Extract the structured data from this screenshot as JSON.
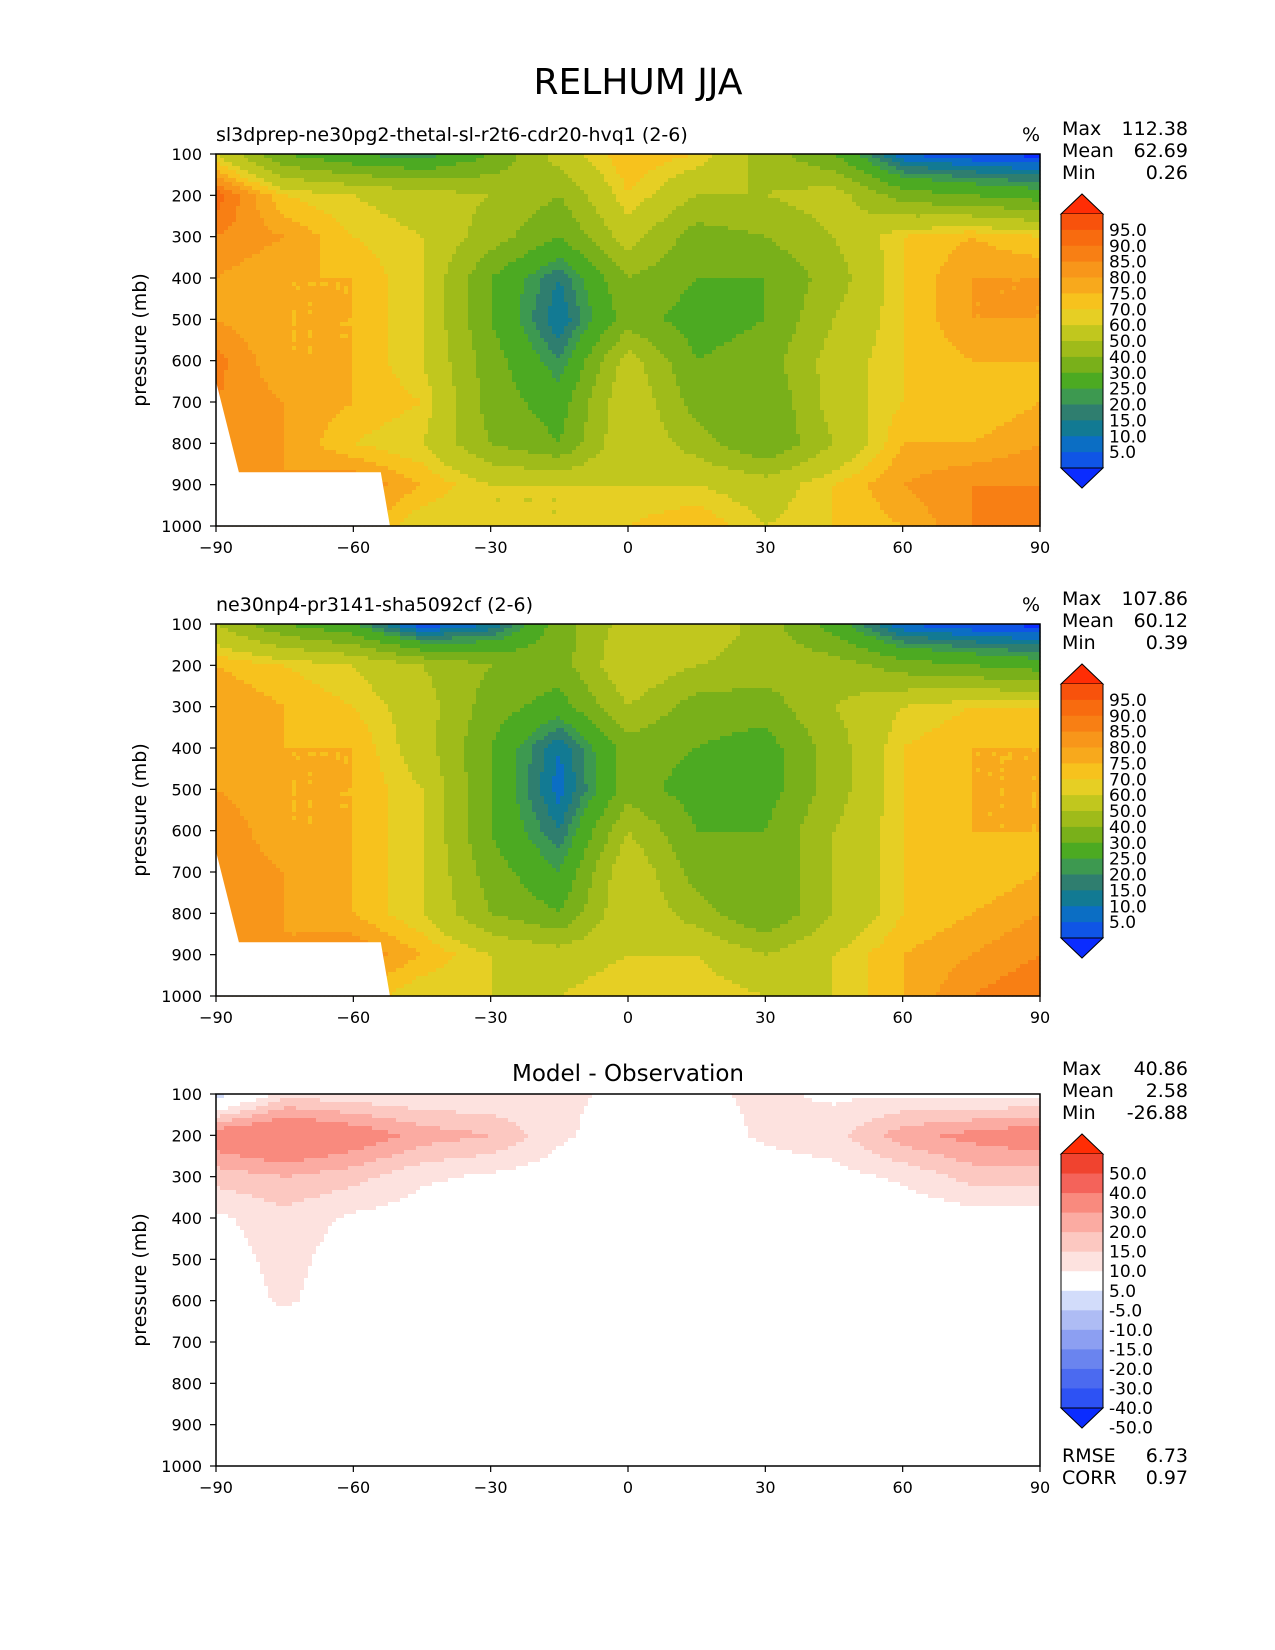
{
  "figure": {
    "title": "RELHUM JJA",
    "colors": {
      "field": [
        "#0b2cff",
        "#0f55e6",
        "#0b6ec4",
        "#127a93",
        "#2f7e6f",
        "#3d9950",
        "#4caa22",
        "#79b01a",
        "#9fbb1a",
        "#c1c71e",
        "#e6cf24",
        "#f7c21d",
        "#f8a91c",
        "#f8961a",
        "#f87f14",
        "#f86b0f",
        "#f8520c",
        "#ff2d05"
      ],
      "diff": [
        "#0b2cff",
        "#2d52f4",
        "#4b6af0",
        "#6a84ef",
        "#8c9ff2",
        "#aebcf4",
        "#d2dcfa",
        "#ffffff",
        "#fde2df",
        "#fcc8c1",
        "#fbaba2",
        "#f98a7e",
        "#f4635a",
        "#f0432f",
        "#ff2d05"
      ]
    }
  },
  "chart_data": [
    {
      "type": "heatmap",
      "title": "sl3dprep-ne30pg2-thetal-sl-r2t6-cdr20-hvq1 (2-6)",
      "units": "%",
      "ylabel": "pressure (mb)",
      "x_ticks": [
        "−90",
        "−60",
        "−30",
        "0",
        "30",
        "60",
        "90"
      ],
      "y_ticks": [
        "100",
        "200",
        "300",
        "400",
        "500",
        "600",
        "700",
        "800",
        "900",
        "1000"
      ],
      "xlim": [
        -90,
        90
      ],
      "ylim": [
        1000,
        100
      ],
      "stats": {
        "max_label": "Max",
        "max": "112.38",
        "mean_label": "Mean",
        "mean": "62.69",
        "min_label": "Min",
        "min": "0.26"
      },
      "colorbar": {
        "levels": [
          "95.0",
          "90.0",
          "85.0",
          "80.0",
          "75.0",
          "70.0",
          "60.0",
          "50.0",
          "40.0",
          "30.0",
          "25.0",
          "20.0",
          "15.0",
          "10.0",
          "5.0"
        ]
      },
      "x": [
        -90,
        -75,
        -60,
        -45,
        -30,
        -15,
        0,
        15,
        30,
        45,
        60,
        75,
        90
      ],
      "y": [
        100,
        200,
        300,
        400,
        500,
        600,
        700,
        800,
        900,
        1000
      ],
      "z": [
        [
          70,
          40,
          30,
          25,
          40,
          65,
          80,
          75,
          55,
          40,
          10,
          5,
          3
        ],
        [
          98,
          75,
          70,
          65,
          60,
          50,
          75,
          60,
          60,
          65,
          45,
          40,
          35
        ],
        [
          90,
          85,
          75,
          70,
          55,
          40,
          65,
          45,
          50,
          60,
          75,
          80,
          75
        ],
        [
          85,
          80,
          80,
          70,
          40,
          20,
          50,
          40,
          40,
          55,
          75,
          85,
          85
        ],
        [
          85,
          80,
          80,
          70,
          40,
          15,
          45,
          35,
          40,
          60,
          75,
          85,
          85
        ],
        [
          92,
          80,
          80,
          70,
          45,
          25,
          65,
          40,
          45,
          65,
          75,
          80,
          80
        ],
        [
          90,
          85,
          80,
          75,
          45,
          35,
          70,
          45,
          40,
          65,
          75,
          75,
          80
        ],
        [
          90,
          85,
          75,
          70,
          50,
          40,
          70,
          55,
          40,
          60,
          80,
          80,
          85
        ],
        [
          90,
          85,
          90,
          80,
          70,
          70,
          70,
          70,
          65,
          75,
          85,
          90,
          90
        ],
        [
          90,
          90,
          85,
          70,
          70,
          70,
          75,
          80,
          70,
          75,
          80,
          90,
          95
        ]
      ],
      "mask": [
        [
          -90,
          650
        ],
        [
          -85,
          870
        ],
        [
          -54,
          870
        ],
        [
          -52,
          1000
        ]
      ]
    },
    {
      "type": "heatmap",
      "title": "ne30np4-pr3141-sha5092cf (2-6)",
      "units": "%",
      "ylabel": "pressure (mb)",
      "x_ticks": [
        "−90",
        "−60",
        "−30",
        "0",
        "30",
        "60",
        "90"
      ],
      "y_ticks": [
        "100",
        "200",
        "300",
        "400",
        "500",
        "600",
        "700",
        "800",
        "900",
        "1000"
      ],
      "xlim": [
        -90,
        90
      ],
      "ylim": [
        1000,
        100
      ],
      "stats": {
        "max_label": "Max",
        "max": "107.86",
        "mean_label": "Mean",
        "mean": "60.12",
        "min_label": "Min",
        "min": "0.39"
      },
      "colorbar": {
        "levels": [
          "95.0",
          "90.0",
          "85.0",
          "80.0",
          "75.0",
          "70.0",
          "60.0",
          "50.0",
          "40.0",
          "30.0",
          "25.0",
          "20.0",
          "15.0",
          "10.0",
          "5.0"
        ]
      },
      "x": [
        -90,
        -75,
        -60,
        -45,
        -30,
        -15,
        0,
        15,
        30,
        45,
        60,
        75,
        90
      ],
      "y": [
        100,
        200,
        300,
        400,
        500,
        600,
        700,
        800,
        900,
        1000
      ],
      "z": [
        [
          60,
          40,
          30,
          5,
          15,
          45,
          65,
          70,
          55,
          35,
          10,
          5,
          3
        ],
        [
          80,
          75,
          70,
          60,
          50,
          45,
          70,
          60,
          55,
          55,
          45,
          40,
          35
        ],
        [
          85,
          80,
          75,
          65,
          45,
          35,
          60,
          45,
          45,
          60,
          70,
          75,
          75
        ],
        [
          85,
          80,
          80,
          65,
          40,
          15,
          45,
          40,
          35,
          55,
          75,
          80,
          80
        ],
        [
          85,
          80,
          80,
          70,
          40,
          12,
          45,
          35,
          35,
          55,
          75,
          80,
          80
        ],
        [
          90,
          80,
          80,
          70,
          40,
          20,
          60,
          40,
          40,
          60,
          75,
          80,
          80
        ],
        [
          90,
          85,
          80,
          70,
          45,
          30,
          70,
          45,
          40,
          60,
          75,
          75,
          80
        ],
        [
          90,
          85,
          80,
          70,
          50,
          40,
          70,
          55,
          40,
          60,
          75,
          80,
          85
        ],
        [
          90,
          85,
          90,
          80,
          70,
          65,
          70,
          70,
          60,
          70,
          80,
          85,
          90
        ],
        [
          90,
          90,
          80,
          70,
          70,
          70,
          75,
          75,
          70,
          70,
          80,
          90,
          95
        ]
      ],
      "mask": [
        [
          -90,
          650
        ],
        [
          -85,
          870
        ],
        [
          -54,
          870
        ],
        [
          -52,
          1000
        ]
      ]
    },
    {
      "type": "heatmap",
      "title": "Model - Observation",
      "ylabel": "pressure (mb)",
      "x_ticks": [
        "−90",
        "−60",
        "−30",
        "0",
        "30",
        "60",
        "90"
      ],
      "y_ticks": [
        "100",
        "200",
        "300",
        "400",
        "500",
        "600",
        "700",
        "800",
        "900",
        "1000"
      ],
      "xlim": [
        -90,
        90
      ],
      "ylim": [
        1000,
        100
      ],
      "stats": {
        "max_label": "Max",
        "max": "40.86",
        "mean_label": "Mean",
        "mean": "2.58",
        "min_label": "Min",
        "min": "-26.88"
      },
      "colorbar": {
        "levels": [
          "50.0",
          "40.0",
          "30.0",
          "20.0",
          "15.0",
          "10.0",
          "5.0",
          "-5.0",
          "-10.0",
          "-15.0",
          "-20.0",
          "-30.0",
          "-40.0",
          "-50.0"
        ]
      },
      "metrics": {
        "rmse_label": "RMSE",
        "rmse": "6.73",
        "corr_label": "CORR",
        "corr": "0.97"
      },
      "x": [
        -90,
        -75,
        -60,
        -45,
        -30,
        -15,
        0,
        15,
        30,
        45,
        60,
        75,
        90
      ],
      "y": [
        100,
        200,
        300,
        400,
        500,
        600,
        700,
        800,
        900,
        1000
      ],
      "z": [
        [
          -8,
          8,
          6,
          5,
          5,
          6,
          4,
          4,
          6,
          4,
          4,
          3,
          3
        ],
        [
          25,
          30,
          25,
          18,
          15,
          6,
          2,
          2,
          6,
          8,
          18,
          22,
          25
        ],
        [
          12,
          15,
          12,
          6,
          4,
          2,
          1,
          1,
          2,
          3,
          6,
          12,
          12
        ],
        [
          4,
          8,
          4,
          2,
          1,
          0,
          0,
          0,
          0,
          0,
          1,
          2,
          2
        ],
        [
          2,
          7,
          2,
          1,
          0,
          0,
          0,
          0,
          0,
          0,
          0,
          1,
          1
        ],
        [
          1,
          6,
          1,
          0,
          0,
          0,
          0,
          0,
          0,
          0,
          0,
          0,
          0
        ],
        [
          0,
          0,
          0,
          0,
          0,
          0,
          0,
          0,
          0,
          0,
          0,
          0,
          0
        ],
        [
          0,
          0,
          0,
          0,
          0,
          0,
          0,
          0,
          0,
          0,
          0,
          0,
          0
        ],
        [
          0,
          0,
          0,
          0,
          0,
          0,
          0,
          0,
          0,
          0,
          0,
          0,
          0
        ],
        [
          0,
          0,
          0,
          0,
          0,
          0,
          0,
          0,
          0,
          0,
          0,
          0,
          0
        ]
      ]
    }
  ]
}
